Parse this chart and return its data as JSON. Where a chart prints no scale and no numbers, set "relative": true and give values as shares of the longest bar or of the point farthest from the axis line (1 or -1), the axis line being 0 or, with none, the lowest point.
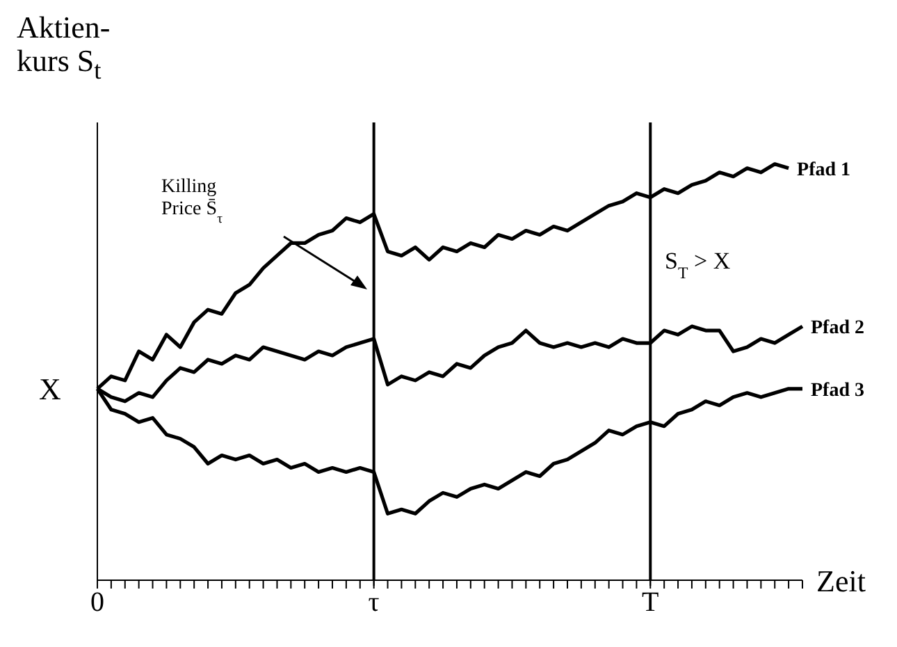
{
  "chart_data": {
    "type": "line",
    "relative": true,
    "xlabel": "Zeit",
    "ylabel": "Aktien-\nkurs S$_{t}$",
    "categories": [
      "0",
      null,
      null,
      null,
      null,
      null,
      null,
      null,
      null,
      null,
      null,
      null,
      null,
      null,
      null,
      null,
      null,
      null,
      null,
      null,
      "τ",
      null,
      null,
      null,
      null,
      null,
      null,
      null,
      null,
      null,
      null,
      null,
      null,
      null,
      null,
      null,
      null,
      null,
      null,
      null,
      "T",
      null,
      null,
      null,
      null,
      null,
      null,
      null,
      null,
      null,
      null,
      null
    ],
    "series": [
      {
        "name": "Pfad 1",
        "color": "#000000",
        "values": [
          0.46,
          0.49,
          0.48,
          0.55,
          0.53,
          0.59,
          0.56,
          0.62,
          0.65,
          0.64,
          0.69,
          0.71,
          0.75,
          0.78,
          0.81,
          0.81,
          0.83,
          0.84,
          0.87,
          0.86,
          0.88,
          0.79,
          0.78,
          0.8,
          0.77,
          0.8,
          0.79,
          0.81,
          0.8,
          0.83,
          0.82,
          0.84,
          0.83,
          0.85,
          0.84,
          0.86,
          0.88,
          0.9,
          0.91,
          0.93,
          0.92,
          0.94,
          0.93,
          0.95,
          0.96,
          0.98,
          0.97,
          0.99,
          0.98,
          1.0,
          0.99,
          null
        ]
      },
      {
        "name": "Pfad 2",
        "color": "#000000",
        "values": [
          0.46,
          0.44,
          0.43,
          0.45,
          0.44,
          0.48,
          0.51,
          0.5,
          0.53,
          0.52,
          0.54,
          0.53,
          0.56,
          0.55,
          0.54,
          0.53,
          0.55,
          0.54,
          0.56,
          0.57,
          0.58,
          0.47,
          0.49,
          0.48,
          0.5,
          0.49,
          0.52,
          0.51,
          0.54,
          0.56,
          0.57,
          0.6,
          0.57,
          0.56,
          0.57,
          0.56,
          0.57,
          0.56,
          0.58,
          0.57,
          0.57,
          0.6,
          0.59,
          0.61,
          0.6,
          0.6,
          0.55,
          0.56,
          0.58,
          0.57,
          0.59,
          0.61
        ]
      },
      {
        "name": "Pfad 3",
        "color": "#000000",
        "values": [
          0.46,
          0.41,
          0.4,
          0.38,
          0.39,
          0.35,
          0.34,
          0.32,
          0.28,
          0.3,
          0.29,
          0.3,
          0.28,
          0.29,
          0.27,
          0.28,
          0.26,
          0.27,
          0.26,
          0.27,
          0.26,
          0.16,
          0.17,
          0.16,
          0.19,
          0.21,
          0.2,
          0.22,
          0.23,
          0.22,
          0.24,
          0.26,
          0.25,
          0.28,
          0.29,
          0.31,
          0.33,
          0.36,
          0.35,
          0.37,
          0.38,
          0.37,
          0.4,
          0.41,
          0.43,
          0.42,
          0.44,
          0.45,
          0.44,
          0.45,
          0.46,
          0.46
        ]
      }
    ],
    "ref_lines": [
      {
        "axis": "x",
        "value": "τ",
        "color": "#000000"
      },
      {
        "axis": "x",
        "value": "T",
        "color": "#000000"
      }
    ],
    "annotations": [
      "X",
      "Killing\nPrice S̄$_{τ}$",
      "S$_{T}$ > X"
    ]
  }
}
